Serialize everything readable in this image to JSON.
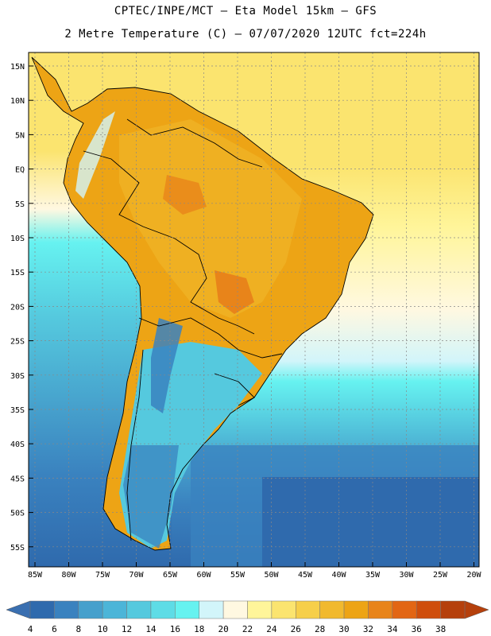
{
  "title_line1": "CPTEC/INPE/MCT –  Eta Model 15km – GFS",
  "title_line2": "2 Metre Temperature (C) – 07/07/2020 12UTC fct=224h",
  "lat_labels": [
    "15N",
    "10N",
    "5N",
    "EQ",
    "5S",
    "10S",
    "15S",
    "20S",
    "25S",
    "30S",
    "35S",
    "40S",
    "45S",
    "50S",
    "55S"
  ],
  "lon_labels": [
    "85W",
    "80W",
    "75W",
    "70W",
    "65W",
    "60W",
    "55W",
    "50W",
    "45W",
    "40W",
    "35W",
    "30W",
    "25W",
    "20W"
  ],
  "colorbar": {
    "labels": [
      "4",
      "6",
      "8",
      "10",
      "12",
      "14",
      "16",
      "18",
      "20",
      "22",
      "24",
      "26",
      "28",
      "30",
      "32",
      "34",
      "36",
      "38"
    ],
    "low_color": "#3a6fb0",
    "high_color": "#b5400c",
    "colors": [
      "#2f6aad",
      "#3a82bf",
      "#46a0cc",
      "#4cb5d8",
      "#55c9de",
      "#5edce6",
      "#66f2f0",
      "#d2f5fa",
      "#fff8e1",
      "#fff59a",
      "#fbe46f",
      "#f6cf4a",
      "#f1b92e",
      "#eda415",
      "#e8841a",
      "#e26614",
      "#cf4e0c",
      "#b5400c"
    ]
  }
}
